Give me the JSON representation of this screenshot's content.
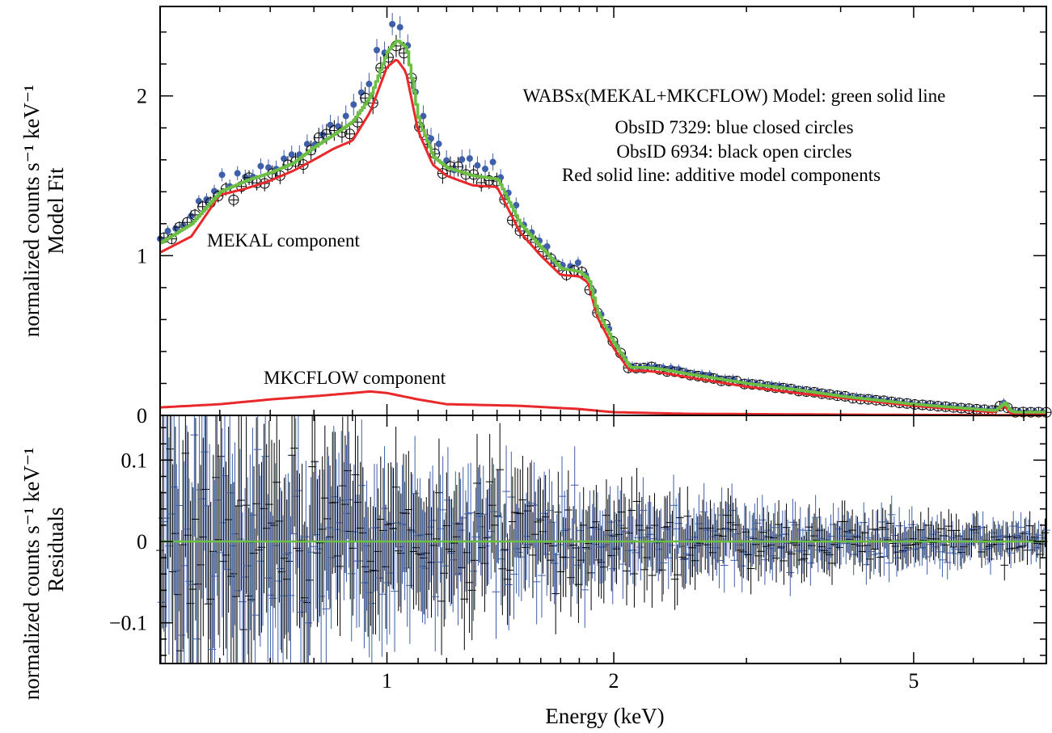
{
  "chart_data": [
    {
      "panel": "top",
      "type": "line",
      "xlabel": "",
      "ylabel_lines": [
        "normalized counts s⁻¹ keV⁻¹",
        "Model Fit"
      ],
      "xscale": "log",
      "xlim": [
        0.5,
        7.5
      ],
      "ylim": [
        0,
        2.56
      ],
      "yticks": [
        0,
        1,
        2
      ],
      "ytick_labels": [
        "0",
        "1",
        "2"
      ],
      "annotations": {
        "model": "WABSx(MEKAL+MKCFLOW) Model: green solid line",
        "obs1": "ObsID 7329: blue closed circles",
        "obs2": "ObsID 6934: black open circles",
        "red": "Red solid line: additive model components",
        "mekal": "MEKAL component",
        "mkcflow": "MKCFLOW component"
      },
      "series": [
        {
          "role": "model-total",
          "color": "#6dbe45",
          "x": [
            0.5,
            0.55,
            0.6,
            0.65,
            0.7,
            0.75,
            0.8,
            0.85,
            0.9,
            0.95,
            1.0,
            1.03,
            1.06,
            1.1,
            1.15,
            1.2,
            1.3,
            1.4,
            1.5,
            1.6,
            1.7,
            1.8,
            1.85,
            1.9,
            2.0,
            2.1,
            2.2,
            2.3,
            2.5,
            3.0,
            3.5,
            4.0,
            5.0,
            6.0,
            6.4,
            6.6,
            6.7,
            6.8,
            7.0,
            7.5
          ],
          "y": [
            1.08,
            1.2,
            1.4,
            1.47,
            1.52,
            1.58,
            1.68,
            1.76,
            1.84,
            2.0,
            2.28,
            2.35,
            2.3,
            1.85,
            1.62,
            1.55,
            1.5,
            1.48,
            1.2,
            1.05,
            0.92,
            0.9,
            0.85,
            0.65,
            0.45,
            0.3,
            0.3,
            0.29,
            0.26,
            0.2,
            0.16,
            0.12,
            0.07,
            0.04,
            0.03,
            0.08,
            0.03,
            0.02,
            0.02,
            0.02
          ]
        },
        {
          "role": "mekal-component",
          "color": "#e8282a",
          "x": [
            0.5,
            0.55,
            0.6,
            0.65,
            0.7,
            0.75,
            0.8,
            0.85,
            0.9,
            0.95,
            1.0,
            1.03,
            1.06,
            1.1,
            1.15,
            1.2,
            1.3,
            1.4,
            1.5,
            1.6,
            1.7,
            1.8,
            1.85,
            1.9,
            2.0,
            2.1,
            2.2,
            2.3,
            2.5,
            3.0,
            3.5,
            4.0,
            5.0,
            6.0,
            6.4,
            6.6,
            6.7,
            6.8,
            7.0,
            7.5
          ],
          "y": [
            1.02,
            1.12,
            1.38,
            1.42,
            1.47,
            1.53,
            1.6,
            1.67,
            1.72,
            1.9,
            2.18,
            2.23,
            2.15,
            1.78,
            1.57,
            1.5,
            1.44,
            1.43,
            1.15,
            1.0,
            0.88,
            0.87,
            0.83,
            0.62,
            0.42,
            0.28,
            0.28,
            0.27,
            0.24,
            0.18,
            0.14,
            0.11,
            0.06,
            0.03,
            0.02,
            0.06,
            0.02,
            0.01,
            0.01,
            0.01
          ]
        },
        {
          "role": "mkcflow-component",
          "color": "#e8282a",
          "x": [
            0.5,
            0.6,
            0.7,
            0.8,
            0.9,
            0.95,
            1.0,
            1.1,
            1.2,
            1.5,
            1.8,
            2.0,
            2.5,
            3.0,
            4.0,
            5.0,
            7.5
          ],
          "y": [
            0.05,
            0.07,
            0.1,
            0.12,
            0.14,
            0.15,
            0.14,
            0.1,
            0.07,
            0.06,
            0.04,
            0.02,
            0.01,
            0.008,
            0.005,
            0.003,
            0.001
          ]
        }
      ]
    },
    {
      "panel": "bottom",
      "type": "scatter",
      "xlabel": "Energy (keV)",
      "ylabel_lines": [
        "normalized counts s⁻¹ keV⁻¹",
        "Residuals"
      ],
      "xscale": "log",
      "xlim": [
        0.5,
        7.5
      ],
      "xticks": [
        1,
        2,
        5
      ],
      "xtick_labels": [
        "1",
        "2",
        "5"
      ],
      "ylim": [
        -0.15,
        0.155
      ],
      "yticks": [
        0.1,
        0,
        -0.1
      ],
      "ytick_labels": [
        "0.1",
        "0",
        "−0.1"
      ],
      "zero_line_color": "#6dbe45",
      "series": [
        {
          "name": "",
          "color": "#000000"
        },
        {
          "name": "",
          "color": "#3f5fa8"
        }
      ]
    }
  ]
}
